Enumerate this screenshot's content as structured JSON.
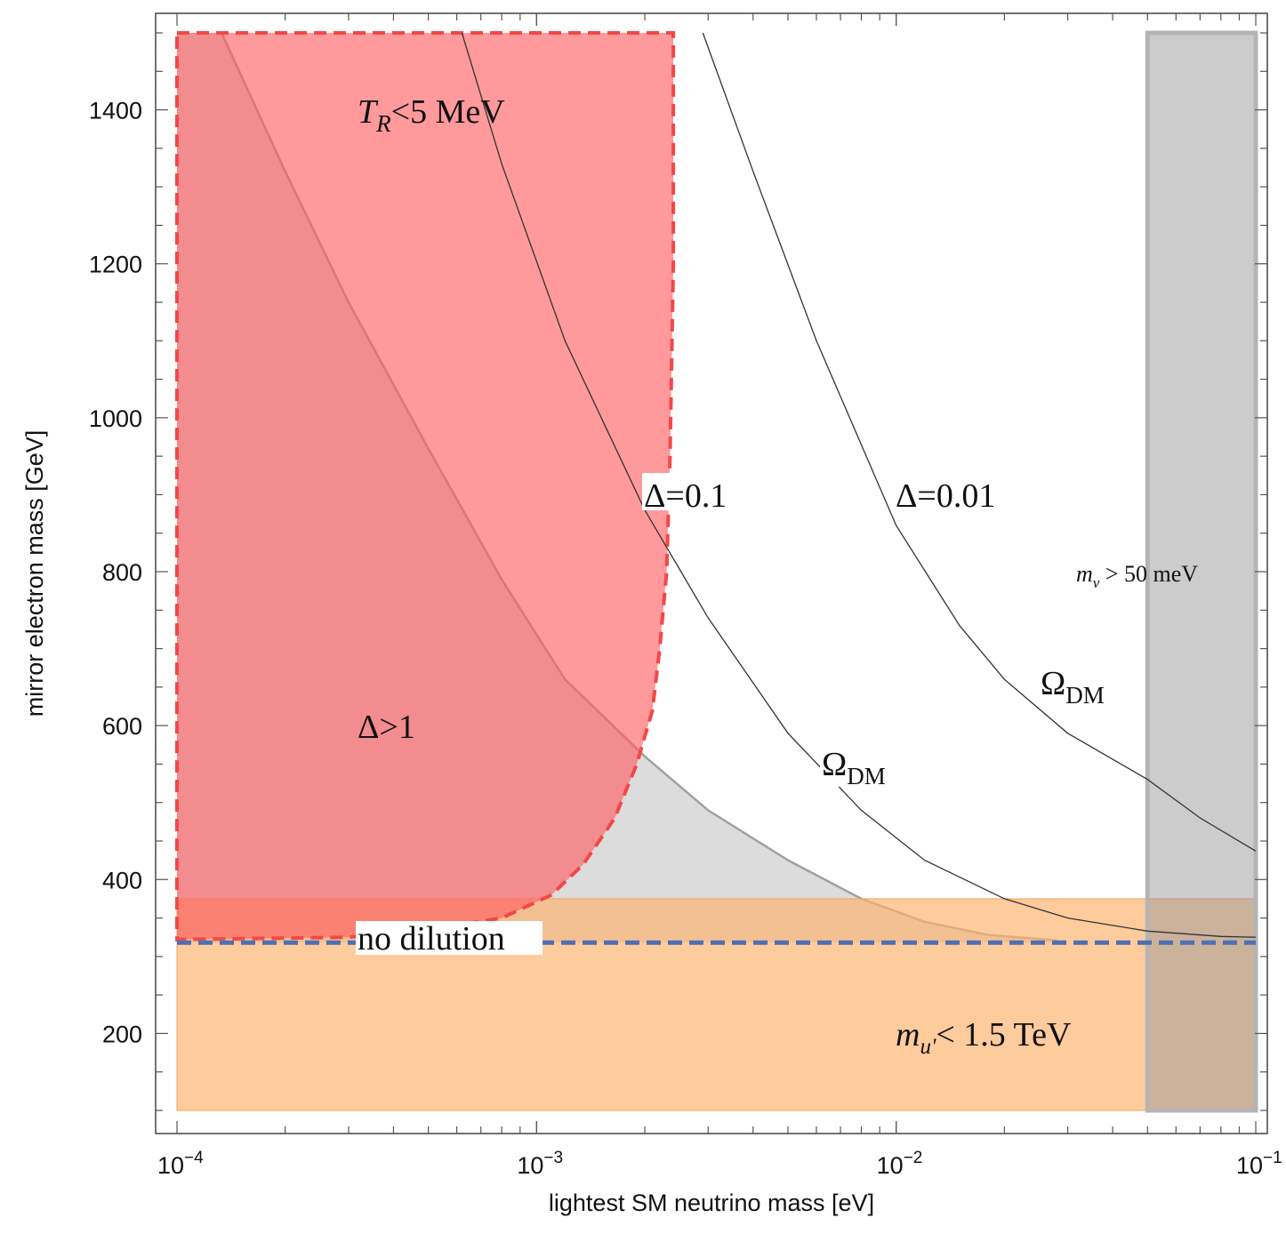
{
  "chart_data": {
    "type": "area",
    "title": "",
    "xlabel": "lightest SM neutrino mass [eV]",
    "ylabel": "mirror electron mass [GeV]",
    "xscale": "log",
    "xlim": [
      0.0001,
      0.1
    ],
    "ylim": [
      100,
      1500
    ],
    "x_ticks": [
      {
        "value": 0.0001,
        "base": "10",
        "exp": "−4"
      },
      {
        "value": 0.001,
        "base": "10",
        "exp": "−3"
      },
      {
        "value": 0.01,
        "base": "10",
        "exp": "−2"
      },
      {
        "value": 0.1,
        "base": "10",
        "exp": "−1"
      }
    ],
    "y_ticks": [
      "200",
      "400",
      "600",
      "800",
      "1000",
      "1200",
      "1400"
    ],
    "grid": false,
    "regions": [
      {
        "label": "Δ>1",
        "color": "#b0b0b0",
        "boundary": [
          [
            0.000133,
            1500
          ],
          [
            0.0002,
            1320
          ],
          [
            0.0003,
            1150
          ],
          [
            0.0005,
            960
          ],
          [
            0.0008,
            790
          ],
          [
            0.0012,
            660
          ],
          [
            0.002,
            560
          ],
          [
            0.003,
            490
          ],
          [
            0.005,
            425
          ],
          [
            0.008,
            375
          ],
          [
            0.012,
            345
          ],
          [
            0.018,
            328
          ],
          [
            0.028,
            321
          ]
        ]
      },
      {
        "label_italic": "T",
        "label_sub": "R",
        "label_rest": "<5 MeV",
        "color": "#ff5a5f",
        "boundary": [
          [
            0.0001,
            1500
          ],
          [
            0.0024,
            1500
          ],
          [
            0.0024,
            1200
          ],
          [
            0.00235,
            950
          ],
          [
            0.0023,
            800
          ],
          [
            0.0022,
            700
          ],
          [
            0.0021,
            620
          ],
          [
            0.0019,
            550
          ],
          [
            0.00165,
            480
          ],
          [
            0.00135,
            420
          ],
          [
            0.0011,
            380
          ],
          [
            0.0008,
            350
          ],
          [
            0.0005,
            335
          ],
          [
            0.0003,
            325
          ],
          [
            0.0001,
            322
          ]
        ]
      },
      {
        "label_italic": "m",
        "label_sub": "u'",
        "label_rest": "< 1.5 TeV",
        "color": "#fdb36e",
        "x_range": [
          0.0001,
          0.1
        ],
        "y_range": [
          100,
          375
        ]
      },
      {
        "label_italic": "m",
        "label_sub": "ν",
        "label_rest": " > 50 meV",
        "color": "#9a9a9a",
        "x_range": [
          0.05,
          0.1
        ],
        "y_range": [
          100,
          1500
        ]
      }
    ],
    "series": [
      {
        "name": "Δ=0.1",
        "curve_label": "Ω",
        "curve_label_sub": "DM",
        "x": [
          0.00062,
          0.0008,
          0.0012,
          0.002,
          0.003,
          0.005,
          0.008,
          0.012,
          0.02,
          0.03,
          0.05,
          0.08,
          0.1
        ],
        "y": [
          1500,
          1330,
          1100,
          880,
          740,
          590,
          490,
          425,
          375,
          350,
          333,
          326,
          325
        ]
      },
      {
        "name": "Δ=0.01",
        "curve_label": "Ω",
        "curve_label_sub": "DM",
        "x": [
          0.0029,
          0.004,
          0.006,
          0.01,
          0.015,
          0.02,
          0.03,
          0.05,
          0.07,
          0.1
        ],
        "y": [
          1500,
          1320,
          1100,
          860,
          730,
          660,
          590,
          530,
          480,
          437
        ]
      },
      {
        "name": "no dilution",
        "style": "dashed",
        "color": "#4f6fb5",
        "x": [
          0.0001,
          0.1
        ],
        "y": [
          318,
          318
        ]
      }
    ]
  }
}
